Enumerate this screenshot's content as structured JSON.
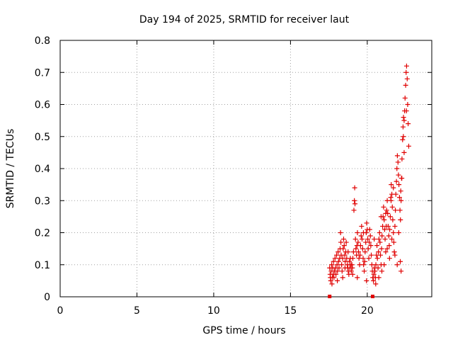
{
  "chart_data": {
    "type": "scatter",
    "title": "Day 194 of 2025, SRMTID for receiver laut",
    "xlabel": "GPS time / hours",
    "ylabel": "SRMTID / TECUs",
    "xlim": [
      0,
      24.2
    ],
    "ylim": [
      0,
      0.8
    ],
    "xticks": [
      0,
      5,
      10,
      15,
      20
    ],
    "yticks": [
      0,
      0.1,
      0.2,
      0.3,
      0.4,
      0.5,
      0.6,
      0.7,
      0.8
    ],
    "xtick_labels": [
      "0",
      "5",
      "10",
      "15",
      "20"
    ],
    "ytick_labels": [
      "0",
      "0.1",
      "0.2",
      "0.3",
      "0.4",
      "0.5",
      "0.6",
      "0.7",
      "0.8"
    ],
    "grid": true,
    "marker": "+",
    "series_color": "#e00000",
    "gap_markers": [
      {
        "x": 17.55,
        "y": 0.0
      },
      {
        "x": 20.35,
        "y": 0.0
      }
    ],
    "series": [
      {
        "name": "SRMTID",
        "points": [
          [
            17.55,
            0.09
          ],
          [
            17.58,
            0.07
          ],
          [
            17.6,
            0.06
          ],
          [
            17.62,
            0.05
          ],
          [
            17.65,
            0.08
          ],
          [
            17.68,
            0.1
          ],
          [
            17.7,
            0.04
          ],
          [
            17.72,
            0.06
          ],
          [
            17.75,
            0.09
          ],
          [
            17.78,
            0.07
          ],
          [
            17.8,
            0.11
          ],
          [
            17.83,
            0.06
          ],
          [
            17.86,
            0.08
          ],
          [
            17.9,
            0.12
          ],
          [
            17.93,
            0.09
          ],
          [
            17.96,
            0.07
          ],
          [
            18.0,
            0.13
          ],
          [
            18.03,
            0.1
          ],
          [
            18.06,
            0.08
          ],
          [
            18.1,
            0.14
          ],
          [
            18.13,
            0.11
          ],
          [
            18.16,
            0.09
          ],
          [
            18.2,
            0.12
          ],
          [
            18.23,
            0.15
          ],
          [
            18.26,
            0.2
          ],
          [
            18.28,
            0.17
          ],
          [
            18.3,
            0.13
          ],
          [
            18.33,
            0.1
          ],
          [
            18.36,
            0.08
          ],
          [
            18.4,
            0.12
          ],
          [
            18.43,
            0.15
          ],
          [
            18.46,
            0.18
          ],
          [
            18.5,
            0.16
          ],
          [
            18.53,
            0.13
          ],
          [
            18.56,
            0.11
          ],
          [
            18.6,
            0.14
          ],
          [
            18.63,
            0.17
          ],
          [
            18.66,
            0.12
          ],
          [
            18.7,
            0.1
          ],
          [
            18.73,
            0.09
          ],
          [
            18.76,
            0.08
          ],
          [
            18.8,
            0.07
          ],
          [
            18.83,
            0.11
          ],
          [
            18.86,
            0.09
          ],
          [
            18.9,
            0.12
          ],
          [
            18.93,
            0.1
          ],
          [
            18.96,
            0.08
          ],
          [
            19.0,
            0.1
          ],
          [
            19.03,
            0.09
          ],
          [
            19.06,
            0.12
          ],
          [
            19.1,
            0.14
          ],
          [
            19.13,
            0.27
          ],
          [
            19.16,
            0.3
          ],
          [
            19.18,
            0.34
          ],
          [
            19.2,
            0.29
          ],
          [
            19.23,
            0.18
          ],
          [
            19.26,
            0.15
          ],
          [
            19.3,
            0.13
          ],
          [
            19.33,
            0.16
          ],
          [
            19.36,
            0.2
          ],
          [
            19.4,
            0.17
          ],
          [
            19.43,
            0.14
          ],
          [
            19.46,
            0.12
          ],
          [
            19.5,
            0.1
          ],
          [
            19.53,
            0.13
          ],
          [
            19.56,
            0.16
          ],
          [
            19.6,
            0.19
          ],
          [
            19.63,
            0.22
          ],
          [
            19.66,
            0.18
          ],
          [
            19.7,
            0.15
          ],
          [
            19.73,
            0.12
          ],
          [
            19.76,
            0.1
          ],
          [
            19.8,
            0.08
          ],
          [
            19.83,
            0.11
          ],
          [
            19.86,
            0.14
          ],
          [
            19.9,
            0.17
          ],
          [
            19.93,
            0.2
          ],
          [
            19.96,
            0.23
          ],
          [
            20.0,
            0.21
          ],
          [
            20.03,
            0.18
          ],
          [
            20.06,
            0.15
          ],
          [
            20.1,
            0.12
          ],
          [
            20.13,
            0.17
          ],
          [
            20.16,
            0.21
          ],
          [
            20.2,
            0.19
          ],
          [
            20.23,
            0.16
          ],
          [
            20.26,
            0.13
          ],
          [
            20.3,
            0.1
          ],
          [
            20.33,
            0.08
          ],
          [
            20.36,
            0.06
          ],
          [
            20.4,
            0.05
          ],
          [
            20.43,
            0.07
          ],
          [
            20.46,
            0.09
          ],
          [
            20.5,
            0.08
          ],
          [
            20.53,
            0.06
          ],
          [
            20.56,
            0.1
          ],
          [
            20.6,
            0.13
          ],
          [
            20.63,
            0.16
          ],
          [
            20.66,
            0.12
          ],
          [
            20.7,
            0.09
          ],
          [
            20.73,
            0.14
          ],
          [
            20.76,
            0.18
          ],
          [
            20.8,
            0.2
          ],
          [
            20.83,
            0.17
          ],
          [
            20.86,
            0.13
          ],
          [
            20.9,
            0.1
          ],
          [
            20.93,
            0.15
          ],
          [
            20.96,
            0.19
          ],
          [
            21.0,
            0.22
          ],
          [
            21.03,
            0.25
          ],
          [
            21.06,
            0.28
          ],
          [
            21.1,
            0.24
          ],
          [
            21.13,
            0.21
          ],
          [
            21.16,
            0.18
          ],
          [
            21.2,
            0.14
          ],
          [
            21.23,
            0.22
          ],
          [
            21.26,
            0.27
          ],
          [
            21.3,
            0.3
          ],
          [
            21.33,
            0.26
          ],
          [
            21.36,
            0.22
          ],
          [
            21.4,
            0.19
          ],
          [
            21.43,
            0.16
          ],
          [
            21.46,
            0.21
          ],
          [
            21.5,
            0.25
          ],
          [
            21.53,
            0.31
          ],
          [
            21.56,
            0.35
          ],
          [
            21.6,
            0.32
          ],
          [
            21.63,
            0.28
          ],
          [
            21.66,
            0.24
          ],
          [
            21.7,
            0.2
          ],
          [
            21.73,
            0.17
          ],
          [
            21.76,
            0.14
          ],
          [
            21.8,
            0.22
          ],
          [
            21.83,
            0.27
          ],
          [
            21.86,
            0.32
          ],
          [
            21.9,
            0.36
          ],
          [
            21.93,
            0.4
          ],
          [
            21.96,
            0.44
          ],
          [
            22.0,
            0.42
          ],
          [
            22.03,
            0.38
          ],
          [
            22.06,
            0.35
          ],
          [
            22.1,
            0.31
          ],
          [
            22.13,
            0.27
          ],
          [
            22.16,
            0.24
          ],
          [
            22.2,
            0.3
          ],
          [
            22.23,
            0.37
          ],
          [
            22.26,
            0.43
          ],
          [
            22.3,
            0.49
          ],
          [
            22.33,
            0.53
          ],
          [
            22.36,
            0.56
          ],
          [
            22.4,
            0.55
          ],
          [
            22.43,
            0.58
          ],
          [
            22.46,
            0.62
          ],
          [
            22.5,
            0.66
          ],
          [
            22.53,
            0.7
          ],
          [
            22.56,
            0.72
          ],
          [
            22.6,
            0.68
          ],
          [
            22.63,
            0.6
          ],
          [
            22.66,
            0.54
          ],
          [
            22.7,
            0.47
          ],
          [
            18.05,
            0.05
          ],
          [
            18.4,
            0.06
          ],
          [
            19.05,
            0.07
          ],
          [
            19.35,
            0.06
          ],
          [
            20.55,
            0.04
          ],
          [
            20.75,
            0.06
          ],
          [
            21.1,
            0.1
          ],
          [
            21.45,
            0.12
          ],
          [
            21.95,
            0.1
          ],
          [
            22.15,
            0.11
          ],
          [
            22.2,
            0.08
          ],
          [
            21.8,
            0.13
          ],
          [
            21.6,
            0.18
          ],
          [
            21.3,
            0.15
          ],
          [
            20.95,
            0.08
          ],
          [
            19.75,
            0.2
          ],
          [
            19.95,
            0.05
          ],
          [
            18.75,
            0.14
          ],
          [
            18.55,
            0.09
          ],
          [
            22.05,
            0.2
          ],
          [
            22.35,
            0.5
          ],
          [
            22.4,
            0.45
          ],
          [
            22.55,
            0.58
          ],
          [
            22.25,
            0.37
          ],
          [
            22.18,
            0.33
          ],
          [
            21.7,
            0.34
          ],
          [
            21.55,
            0.3
          ],
          [
            21.2,
            0.26
          ],
          [
            20.9,
            0.25
          ],
          [
            20.45,
            0.18
          ]
        ]
      }
    ]
  }
}
